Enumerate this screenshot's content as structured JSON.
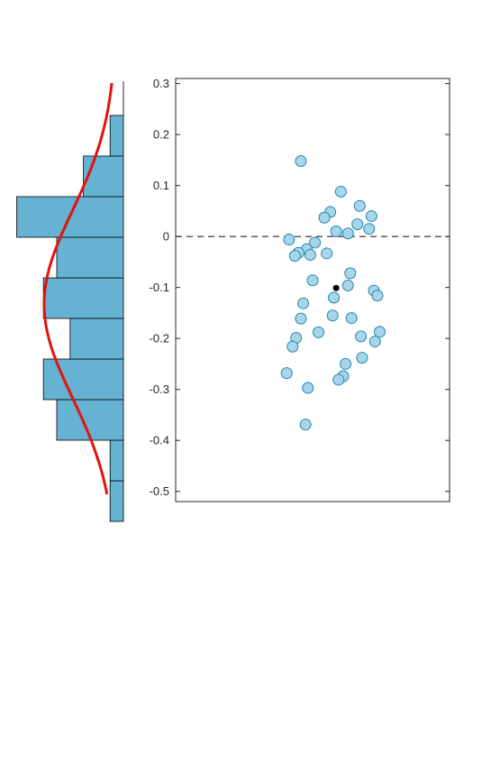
{
  "chart_data": [
    {
      "type": "scatter",
      "title": "",
      "xlabel": "",
      "ylabel": "",
      "ylim": [
        -0.52,
        0.31
      ],
      "yticks": [
        0.3,
        0.2,
        0.1,
        0,
        -0.1,
        -0.2,
        -0.3,
        -0.4,
        -0.5
      ],
      "grid": false,
      "reference_line": {
        "y": 0,
        "style": "dashed"
      },
      "marker_color": "#a8d6e8",
      "marker_edge_color": "#1f86b3",
      "points": [
        {
          "x": -0.1,
          "y": 0.148
        },
        {
          "x": 0.24,
          "y": 0.088
        },
        {
          "x": 0.4,
          "y": 0.06
        },
        {
          "x": 0.15,
          "y": 0.048
        },
        {
          "x": 0.5,
          "y": 0.04
        },
        {
          "x": 0.1,
          "y": 0.037
        },
        {
          "x": 0.38,
          "y": 0.024
        },
        {
          "x": 0.48,
          "y": 0.015
        },
        {
          "x": 0.2,
          "y": 0.01
        },
        {
          "x": 0.3,
          "y": 0.006
        },
        {
          "x": -0.2,
          "y": -0.006
        },
        {
          "x": 0.02,
          "y": -0.012
        },
        {
          "x": -0.05,
          "y": -0.025
        },
        {
          "x": -0.12,
          "y": -0.032
        },
        {
          "x": 0.12,
          "y": -0.033
        },
        {
          "x": -0.02,
          "y": -0.036
        },
        {
          "x": -0.15,
          "y": -0.038
        },
        {
          "x": 0.32,
          "y": -0.072
        },
        {
          "x": 0.0,
          "y": -0.086
        },
        {
          "x": 0.3,
          "y": -0.096
        },
        {
          "x": 0.52,
          "y": -0.106
        },
        {
          "x": 0.55,
          "y": -0.116
        },
        {
          "x": 0.18,
          "y": -0.12
        },
        {
          "x": -0.08,
          "y": -0.131
        },
        {
          "x": 0.17,
          "y": -0.155
        },
        {
          "x": 0.33,
          "y": -0.16
        },
        {
          "x": -0.1,
          "y": -0.161
        },
        {
          "x": 0.57,
          "y": -0.187
        },
        {
          "x": 0.05,
          "y": -0.188
        },
        {
          "x": 0.41,
          "y": -0.196
        },
        {
          "x": -0.14,
          "y": -0.199
        },
        {
          "x": 0.53,
          "y": -0.206
        },
        {
          "x": -0.17,
          "y": -0.216
        },
        {
          "x": 0.42,
          "y": -0.238
        },
        {
          "x": 0.28,
          "y": -0.25
        },
        {
          "x": -0.22,
          "y": -0.268
        },
        {
          "x": 0.26,
          "y": -0.274
        },
        {
          "x": 0.22,
          "y": -0.281
        },
        {
          "x": -0.04,
          "y": -0.297
        },
        {
          "x": -0.06,
          "y": -0.369
        }
      ],
      "mean_point": {
        "x": 0.2,
        "y": -0.101,
        "color": "#000000"
      }
    },
    {
      "type": "bar",
      "orientation": "horizontal",
      "title": "",
      "bar_color": "#66b2d3",
      "bin_edges": [
        -0.48,
        -0.41,
        -0.34,
        -0.27,
        -0.2,
        -0.13,
        -0.06,
        0.01,
        0.08,
        0.15,
        0.22
      ],
      "counts": [
        1,
        1,
        5,
        6,
        4,
        6,
        5,
        8,
        3,
        1
      ],
      "density_curve_color": "#e3120b"
    }
  ]
}
